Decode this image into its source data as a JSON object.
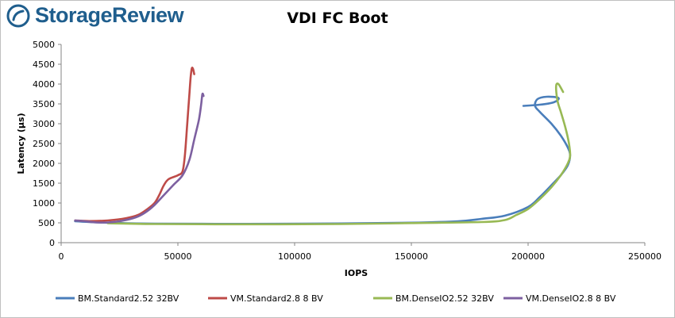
{
  "brand": {
    "name": "StorageReview",
    "logo_icon": "storagereview-logo-icon"
  },
  "chart_data": {
    "type": "line",
    "title": "VDI FC Boot",
    "xlabel": "IOPS",
    "ylabel": "Latency (µs)",
    "xlim": [
      0,
      250000
    ],
    "ylim": [
      0,
      5000
    ],
    "xticks": [
      0,
      50000,
      100000,
      150000,
      200000,
      250000
    ],
    "xtick_labels": [
      "0",
      "50000",
      "100000",
      "150000",
      "200000",
      "250000"
    ],
    "yticks": [
      0,
      500,
      1000,
      1500,
      2000,
      2500,
      3000,
      3500,
      4000,
      4500,
      5000
    ],
    "ytick_labels": [
      "0",
      "500",
      "1000",
      "1500",
      "2000",
      "2500",
      "3000",
      "3500",
      "4000",
      "4500",
      "5000"
    ],
    "grid": false,
    "legend_position": "bottom",
    "series": [
      {
        "name": "BM.Standard2.52 32BV",
        "color": "#4a7ebb",
        "points": [
          [
            6000,
            540
          ],
          [
            12000,
            520
          ],
          [
            20000,
            505
          ],
          [
            40000,
            480
          ],
          [
            80000,
            475
          ],
          [
            120000,
            485
          ],
          [
            150000,
            505
          ],
          [
            170000,
            540
          ],
          [
            180000,
            600
          ],
          [
            190000,
            680
          ],
          [
            200000,
            900
          ],
          [
            205000,
            1150
          ],
          [
            210000,
            1450
          ],
          [
            214000,
            1700
          ],
          [
            217000,
            1950
          ],
          [
            218000,
            2200
          ],
          [
            217000,
            2400
          ],
          [
            214000,
            2700
          ],
          [
            210000,
            3000
          ],
          [
            205000,
            3300
          ],
          [
            203000,
            3450
          ],
          [
            204000,
            3620
          ],
          [
            208000,
            3680
          ],
          [
            213000,
            3650
          ],
          [
            211000,
            3540
          ],
          [
            205000,
            3480
          ],
          [
            198000,
            3450
          ]
        ]
      },
      {
        "name": "VM.Standard2.8 8 BV",
        "color": "#be4b48",
        "points": [
          [
            6000,
            560
          ],
          [
            12000,
            545
          ],
          [
            20000,
            560
          ],
          [
            28000,
            620
          ],
          [
            33000,
            700
          ],
          [
            37000,
            850
          ],
          [
            40000,
            1000
          ],
          [
            42000,
            1200
          ],
          [
            44000,
            1450
          ],
          [
            46000,
            1600
          ],
          [
            50000,
            1700
          ],
          [
            52000,
            1800
          ],
          [
            53000,
            2200
          ],
          [
            54000,
            3000
          ],
          [
            55000,
            3800
          ],
          [
            55500,
            4200
          ],
          [
            56000,
            4400
          ],
          [
            56500,
            4380
          ],
          [
            57000,
            4250
          ]
        ]
      },
      {
        "name": "BM.DenseIO2.52 32BV",
        "color": "#98b954",
        "points": [
          [
            20000,
            490
          ],
          [
            40000,
            470
          ],
          [
            80000,
            465
          ],
          [
            120000,
            470
          ],
          [
            150000,
            495
          ],
          [
            180000,
            520
          ],
          [
            190000,
            570
          ],
          [
            195000,
            700
          ],
          [
            200000,
            850
          ],
          [
            205000,
            1100
          ],
          [
            210000,
            1400
          ],
          [
            214000,
            1700
          ],
          [
            217000,
            2000
          ],
          [
            218000,
            2200
          ],
          [
            217500,
            2500
          ],
          [
            216000,
            2900
          ],
          [
            214000,
            3300
          ],
          [
            212500,
            3600
          ],
          [
            212000,
            3950
          ],
          [
            213000,
            4000
          ],
          [
            215000,
            3800
          ]
        ]
      },
      {
        "name": "VM.DenseIO2.8 8 BV",
        "color": "#7d60a0",
        "points": [
          [
            6000,
            560
          ],
          [
            10000,
            540
          ],
          [
            15000,
            510
          ],
          [
            20000,
            510
          ],
          [
            26000,
            550
          ],
          [
            32000,
            640
          ],
          [
            36000,
            760
          ],
          [
            40000,
            950
          ],
          [
            44000,
            1200
          ],
          [
            48000,
            1450
          ],
          [
            52000,
            1700
          ],
          [
            55000,
            2100
          ],
          [
            57000,
            2600
          ],
          [
            59000,
            3100
          ],
          [
            60000,
            3500
          ],
          [
            60500,
            3750
          ],
          [
            61000,
            3700
          ]
        ]
      }
    ]
  }
}
